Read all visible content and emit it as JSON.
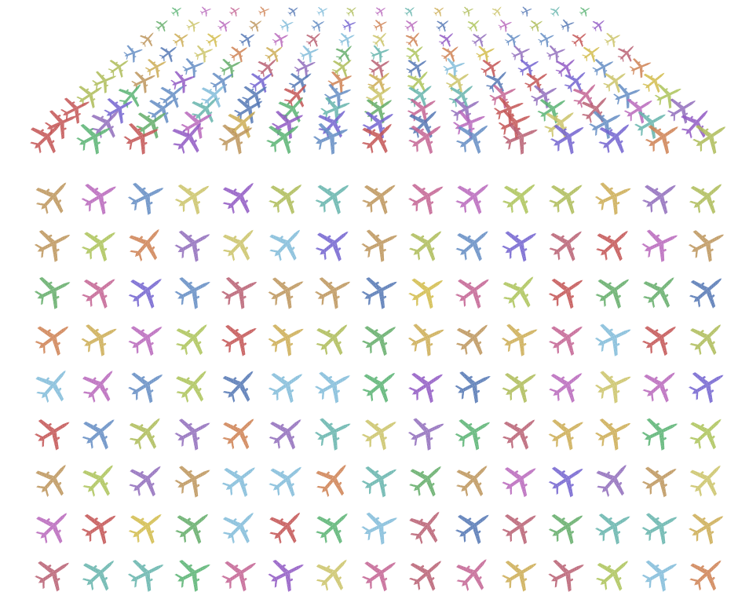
{
  "scene": {
    "description_free": true,
    "palette": [
      "#8a64b8",
      "#a9b84e",
      "#b5566a",
      "#5cb0a8",
      "#b45fb8",
      "#5aa860",
      "#b98f52",
      "#5a86c0",
      "#4a6fb0",
      "#c9a84a",
      "#c05a8c",
      "#4fae6a",
      "#8a4fc0",
      "#a8c050",
      "#c04a4a",
      "#7ab8d8",
      "#d0b840",
      "#cc7a48",
      "#6a5acd",
      "#c8c060"
    ],
    "grid": {
      "columns": 15,
      "rows": 9
    },
    "perspective_plane": {
      "rows": 10,
      "columns": 15
    },
    "icon": "airplane-icon"
  }
}
